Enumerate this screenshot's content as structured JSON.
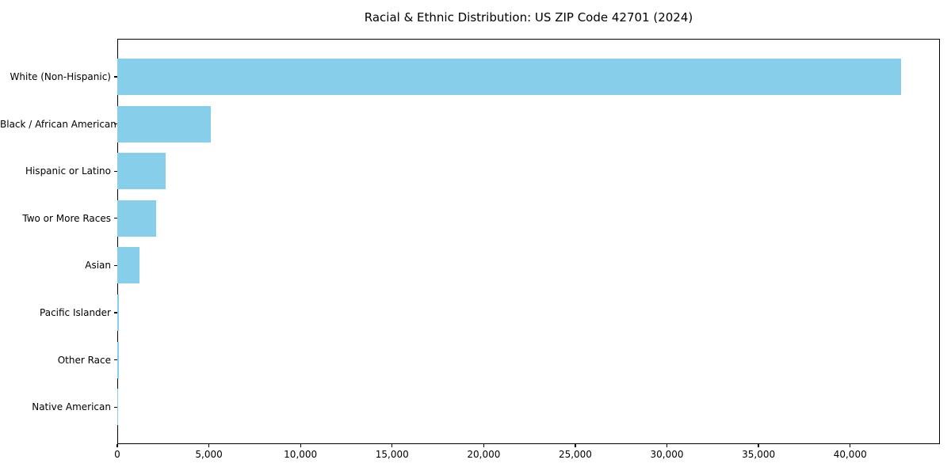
{
  "chart": {
    "title": "Racial & Ethnic Distribution: US ZIP Code 42701 (2024)",
    "background_color": "#FFFFFF",
    "axis_color": "#000000",
    "text_color": "#000000"
  },
  "chart_data": {
    "type": "bar",
    "orientation": "horizontal",
    "title": "Racial & Ethnic Distribution: US ZIP Code 42701 (2024)",
    "xlabel": "",
    "ylabel": "",
    "categories": [
      "White (Non-Hispanic)",
      "Black / African American",
      "Hispanic or Latino",
      "Two or More Races",
      "Asian",
      "Pacific Islander",
      "Other Race",
      "Native American"
    ],
    "values": [
      42770,
      5100,
      2640,
      2120,
      1210,
      100,
      75,
      50
    ],
    "bar_color": "#87CEEB",
    "xlim": [
      0,
      44900
    ],
    "x_ticks": [
      0,
      5000,
      10000,
      15000,
      20000,
      25000,
      30000,
      35000,
      40000
    ],
    "x_tick_labels": [
      "0",
      "5,000",
      "10,000",
      "15,000",
      "20,000",
      "25,000",
      "30,000",
      "35,000",
      "40,000"
    ],
    "grid": false,
    "legend": false
  }
}
